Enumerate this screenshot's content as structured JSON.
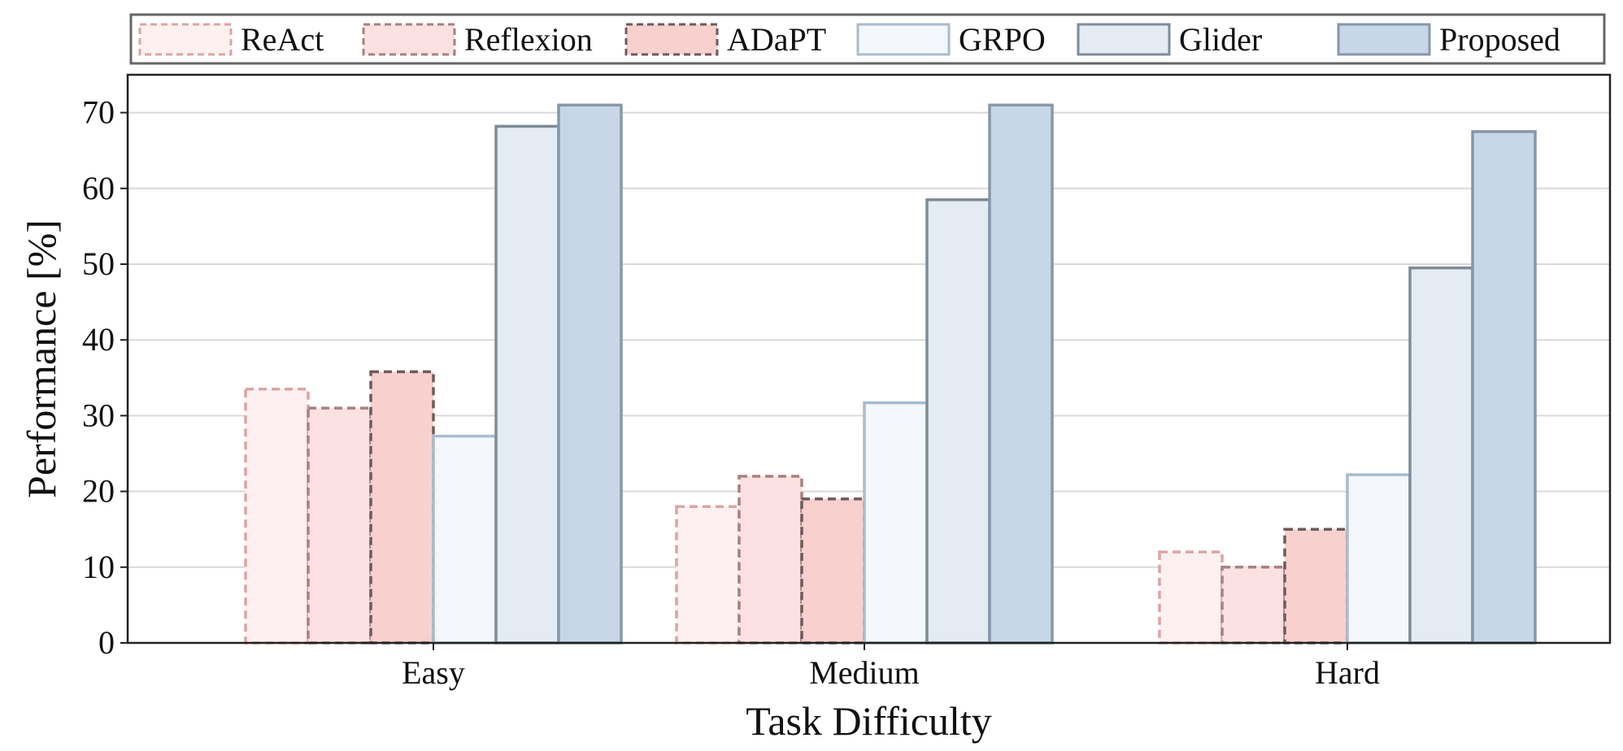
{
  "chart_data": {
    "type": "bar",
    "title": "",
    "xlabel": "Task Difficulty",
    "ylabel": "Performance [%]",
    "categories": [
      "Easy",
      "Medium",
      "Hard"
    ],
    "ylim": [
      0,
      75
    ],
    "yticks": [
      0,
      10,
      20,
      30,
      40,
      50,
      60,
      70
    ],
    "grid": "horizontal",
    "legend_placement": "top, outside plot, single row",
    "series": [
      {
        "name": "ReAct",
        "values": [
          33.5,
          18.0,
          12.0
        ],
        "fill": "#fdf0f0",
        "stroke": "#dca4a4",
        "dashed": true
      },
      {
        "name": "Reflexion",
        "values": [
          31.0,
          22.0,
          10.0
        ],
        "fill": "#fbe1e1",
        "stroke": "#a98080",
        "dashed": true
      },
      {
        "name": "ADaPT",
        "values": [
          35.8,
          19.0,
          15.0
        ],
        "fill": "#f8d0cd",
        "stroke": "#6f5a5a",
        "dashed": true
      },
      {
        "name": "GRPO",
        "values": [
          27.3,
          31.7,
          22.2
        ],
        "fill": "#f4f7fb",
        "stroke": "#a9bccd",
        "dashed": false
      },
      {
        "name": "Glider",
        "values": [
          68.2,
          58.5,
          49.5
        ],
        "fill": "#e4ebf3",
        "stroke": "#7f8b98",
        "dashed": false
      },
      {
        "name": "Proposed",
        "values": [
          71.0,
          71.0,
          67.5
        ],
        "fill": "#c7d7e8",
        "stroke": "#8797a8",
        "dashed": false
      }
    ]
  }
}
